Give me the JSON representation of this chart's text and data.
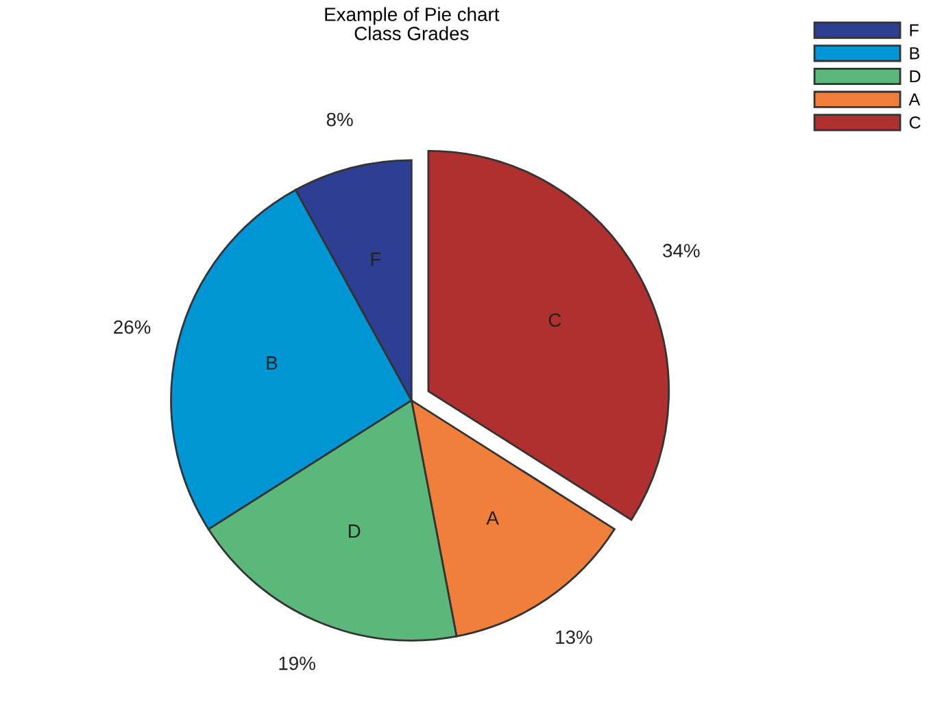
{
  "chart_data": {
    "type": "pie",
    "title": "Example of Pie chart",
    "subtitle": "Class Grades",
    "categories": [
      "C",
      "A",
      "D",
      "B",
      "F"
    ],
    "values": [
      34,
      13,
      19,
      26,
      8
    ],
    "value_labels": [
      "34%",
      "13%",
      "19%",
      "26%",
      "8%"
    ],
    "colors": [
      "#b03030",
      "#f07f3c",
      "#5cb87a",
      "#0096d6",
      "#2e3f93"
    ],
    "legend": "top right"
  }
}
